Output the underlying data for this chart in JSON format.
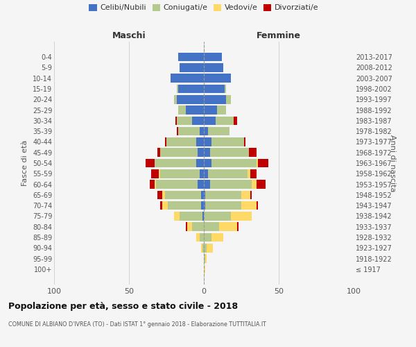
{
  "age_groups": [
    "100+",
    "95-99",
    "90-94",
    "85-89",
    "80-84",
    "75-79",
    "70-74",
    "65-69",
    "60-64",
    "55-59",
    "50-54",
    "45-49",
    "40-44",
    "35-39",
    "30-34",
    "25-29",
    "20-24",
    "15-19",
    "10-14",
    "5-9",
    "0-4"
  ],
  "birth_years": [
    "≤ 1917",
    "1918-1922",
    "1923-1927",
    "1928-1932",
    "1933-1937",
    "1938-1942",
    "1943-1947",
    "1948-1952",
    "1953-1957",
    "1958-1962",
    "1963-1967",
    "1968-1972",
    "1973-1977",
    "1978-1982",
    "1983-1987",
    "1988-1992",
    "1993-1997",
    "1998-2002",
    "2003-2007",
    "2008-2012",
    "2013-2017"
  ],
  "colors": {
    "celibi": "#4472C4",
    "coniugati": "#b5c98e",
    "vedovi": "#ffd966",
    "divorziati": "#c00000",
    "bg": "#f5f5f5",
    "grid": "#cccccc"
  },
  "maschi": {
    "celibi": [
      0,
      0,
      0,
      0,
      0,
      1,
      2,
      2,
      4,
      3,
      5,
      4,
      5,
      3,
      8,
      12,
      18,
      17,
      22,
      16,
      17
    ],
    "coniugati": [
      0,
      0,
      1,
      3,
      8,
      15,
      22,
      24,
      28,
      26,
      28,
      25,
      20,
      14,
      10,
      5,
      2,
      1,
      0,
      0,
      0
    ],
    "vedovi": [
      0,
      0,
      1,
      2,
      3,
      4,
      4,
      2,
      1,
      1,
      0,
      0,
      0,
      0,
      0,
      0,
      0,
      0,
      0,
      0,
      0
    ],
    "divorziati": [
      0,
      0,
      0,
      0,
      1,
      0,
      1,
      3,
      3,
      5,
      6,
      2,
      1,
      1,
      1,
      0,
      0,
      0,
      0,
      0,
      0
    ]
  },
  "femmine": {
    "celibi": [
      0,
      0,
      0,
      0,
      0,
      0,
      1,
      1,
      4,
      3,
      5,
      4,
      5,
      3,
      8,
      9,
      15,
      14,
      18,
      13,
      12
    ],
    "coniugati": [
      0,
      1,
      2,
      5,
      10,
      18,
      24,
      24,
      28,
      26,
      30,
      26,
      22,
      14,
      12,
      6,
      3,
      1,
      0,
      0,
      0
    ],
    "vedovi": [
      1,
      1,
      4,
      8,
      12,
      14,
      10,
      6,
      3,
      2,
      1,
      0,
      0,
      0,
      0,
      0,
      0,
      0,
      0,
      0,
      0
    ],
    "divorziati": [
      0,
      0,
      0,
      0,
      1,
      0,
      1,
      1,
      6,
      4,
      7,
      5,
      1,
      0,
      2,
      0,
      0,
      0,
      0,
      0,
      0
    ]
  },
  "title": "Popolazione per età, sesso e stato civile - 2018",
  "subtitle": "COMUNE DI ALBIANO D'IVREA (TO) - Dati ISTAT 1° gennaio 2018 - Elaborazione TUTTITALIA.IT",
  "xlabel_left": "Maschi",
  "xlabel_right": "Femmine",
  "ylabel_left": "Fasce di età",
  "ylabel_right": "Anni di nascita",
  "xlim": 100,
  "legend_labels": [
    "Celibi/Nubili",
    "Coniugati/e",
    "Vedovi/e",
    "Divorziati/e"
  ]
}
